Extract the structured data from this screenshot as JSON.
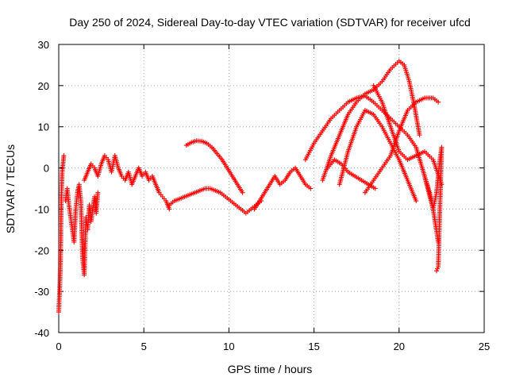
{
  "chart_data": {
    "type": "scatter",
    "title": "Day 250 of 2024, Sidereal Day-to-day VTEC variation (SDTVAR) for receiver ufcd",
    "xlabel": "GPS time / hours",
    "ylabel": "SDTVAR / TECUs",
    "xlim": [
      0,
      25
    ],
    "ylim": [
      -40,
      30
    ],
    "xticks": [
      0,
      5,
      10,
      15,
      20,
      25
    ],
    "yticks": [
      -40,
      -30,
      -20,
      -10,
      0,
      10,
      20,
      30
    ],
    "grid": true,
    "marker": "plus",
    "color": "#ff0000",
    "series": [
      {
        "name": "trace-1",
        "x": [
          0.0,
          0.05,
          0.1,
          0.15,
          0.2,
          0.25,
          0.3
        ],
        "y": [
          -35,
          -30,
          -24,
          -8,
          -1,
          1,
          3
        ]
      },
      {
        "name": "trace-2",
        "x": [
          0.4,
          0.5,
          0.6,
          0.7,
          0.8,
          0.9,
          1.0,
          1.1,
          1.2,
          1.3,
          1.4,
          1.5,
          1.6,
          1.7,
          1.8,
          1.9,
          2.0,
          2.1,
          2.2,
          2.3
        ],
        "y": [
          -8,
          -5,
          -9,
          -12,
          -15,
          -18,
          -10,
          -6,
          -4,
          -8,
          -22,
          -26,
          -12,
          -15,
          -9,
          -13,
          -10,
          -7,
          -11,
          -6
        ]
      },
      {
        "name": "trace-3",
        "x": [
          1.5,
          1.7,
          1.9,
          2.1,
          2.3,
          2.5,
          2.7,
          2.9,
          3.1,
          3.3,
          3.5,
          3.7,
          3.9,
          4.1,
          4.3,
          4.5,
          4.7,
          4.9,
          5.1,
          5.3,
          5.5,
          5.7,
          5.9,
          6.1,
          6.3,
          6.5
        ],
        "y": [
          -3,
          -1,
          1,
          0,
          -2,
          1,
          3,
          2,
          -1,
          3,
          0,
          -2,
          -3,
          -1,
          -4,
          -2,
          0,
          -2,
          -1,
          -3,
          -2,
          -4,
          -6,
          -7,
          -8,
          -10
        ]
      },
      {
        "name": "trace-4",
        "x": [
          6.5,
          6.8,
          7.1,
          7.4,
          7.7,
          8.0,
          8.3,
          8.6,
          8.9,
          9.2,
          9.5,
          9.8,
          10.1,
          10.4,
          10.7,
          11.0,
          11.3,
          11.6,
          11.9
        ],
        "y": [
          -9,
          -8,
          -7.5,
          -7,
          -6.5,
          -6,
          -5.5,
          -5,
          -5,
          -5.5,
          -6,
          -7,
          -8,
          -9,
          -10,
          -11,
          -10,
          -9,
          -8
        ]
      },
      {
        "name": "trace-5",
        "x": [
          7.5,
          7.8,
          8.1,
          8.4,
          8.7,
          9.0,
          9.3,
          9.6,
          9.9,
          10.2,
          10.5,
          10.8
        ],
        "y": [
          5.5,
          6.2,
          6.6,
          6.5,
          6,
          5,
          3.5,
          2,
          0,
          -2,
          -4,
          -6
        ]
      },
      {
        "name": "trace-6",
        "x": [
          11.5,
          11.8,
          12.1,
          12.4,
          12.7,
          13.0,
          13.3,
          13.6,
          13.9,
          14.2,
          14.5,
          14.8
        ],
        "y": [
          -10,
          -8,
          -6,
          -4,
          -2,
          -4,
          -3,
          -1,
          0,
          -2,
          -4,
          -5
        ]
      },
      {
        "name": "trace-7",
        "x": [
          14.5,
          15.0,
          15.5,
          16.0,
          16.5,
          17.0,
          17.5,
          18.0,
          18.5,
          19.0,
          19.5,
          20.0,
          20.5,
          21.0,
          21.5,
          22.0,
          22.3
        ],
        "y": [
          2,
          6,
          9,
          12,
          14,
          16,
          17,
          17.5,
          16,
          14,
          12,
          10,
          8,
          5,
          -2,
          -10,
          -18
        ]
      },
      {
        "name": "trace-8",
        "x": [
          15.5,
          16.0,
          16.5,
          17.0,
          17.5,
          18.0,
          18.5,
          19.0,
          19.5,
          20.0,
          20.3,
          20.6,
          20.9,
          21.2
        ],
        "y": [
          -3,
          3,
          8,
          13,
          16,
          18,
          19,
          21,
          24,
          26,
          25,
          21,
          15,
          8
        ]
      },
      {
        "name": "trace-9",
        "x": [
          15.8,
          16.2,
          16.6,
          17.0,
          17.4,
          17.8,
          18.2,
          18.6
        ],
        "y": [
          0,
          2,
          1,
          -1,
          -2,
          -3,
          -4,
          -5
        ]
      },
      {
        "name": "trace-10",
        "x": [
          16.5,
          17.0,
          17.5,
          18.0,
          18.5,
          19.0,
          19.5,
          20.0,
          20.5,
          21.0
        ],
        "y": [
          -4,
          4,
          10,
          14,
          13,
          10,
          6,
          2,
          -3,
          -8
        ]
      },
      {
        "name": "trace-11",
        "x": [
          18.0,
          18.5,
          19.0,
          19.5,
          20.0,
          20.5,
          21.0,
          21.5,
          22.0,
          22.3
        ],
        "y": [
          -6,
          -3,
          0,
          3,
          9,
          14,
          16,
          17,
          17,
          16
        ]
      },
      {
        "name": "trace-12",
        "x": [
          18.5,
          19.0,
          19.5,
          20.0,
          20.5,
          21.0,
          21.5,
          22.0,
          22.5
        ],
        "y": [
          20,
          16,
          10,
          4,
          2,
          3,
          4,
          2,
          -4
        ]
      },
      {
        "name": "trace-13",
        "x": [
          21.5,
          21.8,
          22.0,
          22.2,
          22.4,
          22.5,
          22.3,
          22.2
        ],
        "y": [
          -2,
          -6,
          -10,
          -6,
          2,
          5,
          -24,
          -25
        ]
      }
    ]
  }
}
